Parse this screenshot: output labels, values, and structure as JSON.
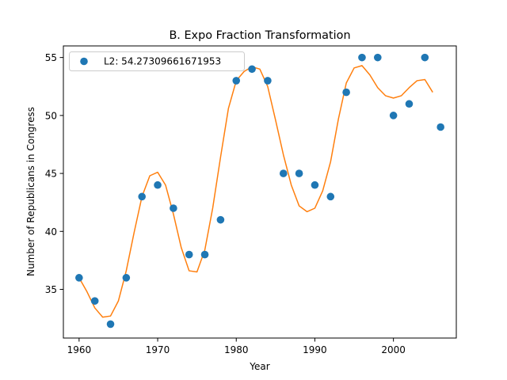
{
  "chart_data": {
    "type": "scatter",
    "title": "B. Expo Fraction Transformation",
    "xlabel": "Year",
    "ylabel": "Number of Republicans in Congress",
    "xlim": [
      1958,
      2008
    ],
    "ylim": [
      30.8,
      56
    ],
    "x_ticks": [
      1960,
      1970,
      1980,
      1990,
      2000
    ],
    "y_ticks": [
      35,
      40,
      45,
      50,
      55
    ],
    "grid": false,
    "legend_position": "top-left",
    "series": [
      {
        "name": "L2: 54.27309661671953",
        "kind": "scatter",
        "color": "#1f77b4",
        "x": [
          1960,
          1962,
          1964,
          1966,
          1968,
          1970,
          1972,
          1974,
          1976,
          1978,
          1980,
          1982,
          1984,
          1986,
          1988,
          1990,
          1992,
          1994,
          1996,
          1998,
          2000,
          2002,
          2004,
          2006
        ],
        "y": [
          36,
          34,
          32,
          36,
          43,
          44,
          42,
          38,
          38,
          41,
          53,
          54,
          53,
          45,
          45,
          44,
          43,
          52,
          55,
          55,
          50,
          51,
          55,
          49
        ]
      },
      {
        "kind": "line",
        "color": "#ff7f0e",
        "x": [
          1960,
          1961,
          1962,
          1963,
          1964,
          1965,
          1966,
          1967,
          1968,
          1969,
          1970,
          1971,
          1972,
          1973,
          1974,
          1975,
          1976,
          1977,
          1978,
          1979,
          1980,
          1981,
          1982,
          1983,
          1984,
          1985,
          1986,
          1987,
          1988,
          1989,
          1990,
          1991,
          1992,
          1993,
          1994,
          1995,
          1996,
          1997,
          1998,
          1999,
          2000,
          2001,
          2002,
          2003,
          2004,
          2005
        ],
        "y": [
          36.0,
          34.8,
          33.4,
          32.6,
          32.7,
          34.0,
          36.6,
          39.9,
          43.0,
          44.8,
          45.1,
          44.0,
          41.5,
          38.6,
          36.6,
          36.5,
          38.4,
          42.0,
          46.4,
          50.6,
          53.0,
          53.8,
          54.2,
          54.0,
          52.5,
          49.6,
          46.6,
          44.0,
          42.2,
          41.7,
          42.0,
          43.5,
          46.0,
          49.7,
          52.8,
          54.1,
          54.3,
          53.5,
          52.4,
          51.7,
          51.5,
          51.7,
          52.4,
          53.0,
          53.1,
          52.0
        ]
      }
    ]
  }
}
